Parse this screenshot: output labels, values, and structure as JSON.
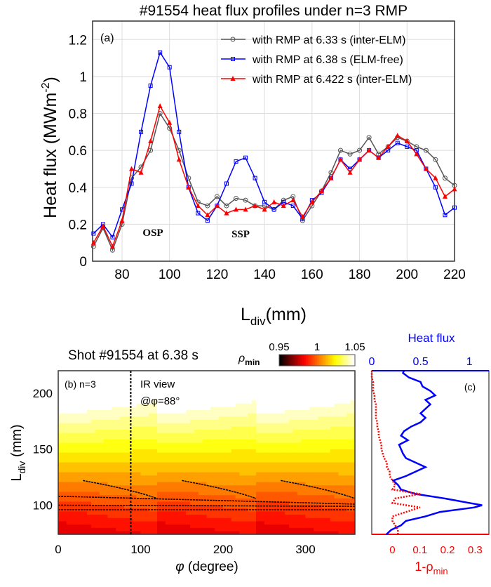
{
  "chart_data": [
    {
      "type": "line",
      "panel": "(a)",
      "title": "#91554 heat flux profiles under n=3 RMP",
      "xlabel": "L",
      "xlabel_sub": "div",
      "xlabel_unit": "(mm)",
      "ylabel": "Heat flux (MWm",
      "ylabel_sup": "-2",
      "ylabel_end": ")",
      "xlim": [
        67.6,
        220
      ],
      "ylim": [
        0,
        1.3
      ],
      "xticks": [
        80,
        100,
        120,
        140,
        160,
        180,
        200,
        220
      ],
      "yticks": [
        0,
        0.2,
        0.4,
        0.6,
        0.8,
        1,
        1.2
      ],
      "grid": true,
      "legend": "top-right",
      "annotations": [
        "OSP",
        "SSP"
      ],
      "x": [
        68,
        72,
        76,
        80,
        84,
        88,
        92,
        96,
        100,
        104,
        108,
        112,
        116,
        120,
        124,
        128,
        132,
        136,
        140,
        144,
        148,
        152,
        156,
        160,
        164,
        168,
        172,
        176,
        180,
        184,
        188,
        192,
        196,
        200,
        204,
        208,
        212,
        216,
        220
      ],
      "series": [
        {
          "name": "with RMP at 6.33 s (inter-ELM)",
          "color": "#555555",
          "marker": "circle",
          "values": [
            0.08,
            0.18,
            0.06,
            0.2,
            0.45,
            0.51,
            0.6,
            0.8,
            0.72,
            0.6,
            0.45,
            0.32,
            0.3,
            0.35,
            0.3,
            0.34,
            0.33,
            0.3,
            0.3,
            0.28,
            0.33,
            0.35,
            0.22,
            0.3,
            0.38,
            0.48,
            0.6,
            0.58,
            0.6,
            0.67,
            0.58,
            0.62,
            0.67,
            0.65,
            0.62,
            0.6,
            0.55,
            0.45,
            0.41
          ]
        },
        {
          "name": "with RMP at 6.38 s (ELM-free)",
          "color": "#0000ff",
          "marker": "square",
          "values": [
            0.15,
            0.2,
            0.13,
            0.28,
            0.42,
            0.7,
            0.95,
            1.13,
            1.05,
            0.7,
            0.4,
            0.26,
            0.22,
            0.3,
            0.42,
            0.54,
            0.56,
            0.45,
            0.32,
            0.28,
            0.32,
            0.3,
            0.23,
            0.33,
            0.37,
            0.45,
            0.55,
            0.5,
            0.55,
            0.6,
            0.56,
            0.6,
            0.64,
            0.62,
            0.6,
            0.5,
            0.4,
            0.25,
            0.29
          ]
        },
        {
          "name": "with RMP at 6.422 s (inter-ELM)",
          "color": "#ff0000",
          "marker": "triangle",
          "values": [
            0.1,
            0.19,
            0.08,
            0.22,
            0.5,
            0.48,
            0.65,
            0.84,
            0.75,
            0.55,
            0.4,
            0.3,
            0.25,
            0.3,
            0.26,
            0.28,
            0.28,
            0.3,
            0.28,
            0.32,
            0.3,
            0.33,
            0.24,
            0.32,
            0.38,
            0.45,
            0.55,
            0.48,
            0.55,
            0.6,
            0.56,
            0.62,
            0.68,
            0.65,
            0.58,
            0.5,
            0.45,
            0.35,
            0.39
          ]
        }
      ]
    },
    {
      "type": "heatmap",
      "panel": "(b) n=3",
      "title": "Shot #91554 at 6.38 s",
      "xlabel": "(degree)",
      "xlabel_symbol": "φ",
      "ylabel": "L",
      "ylabel_sub": "div",
      "ylabel_unit": "(mm)",
      "xlim": [
        0,
        360
      ],
      "ylim": [
        74,
        220
      ],
      "xticks": [
        0,
        100,
        200,
        300
      ],
      "yticks": [
        100,
        150,
        200
      ],
      "colorbar": {
        "label": "ρ",
        "label_sub": "min",
        "ticks": [
          "0.95",
          "1",
          "1.05"
        ],
        "range": [
          0.95,
          1.05
        ],
        "colormap": "hot"
      },
      "annotation": {
        "line1": "IR view",
        "line2": "@φ=88°",
        "phi": 88
      },
      "periodicity_deg": 120
    },
    {
      "type": "line",
      "panel": "(c)",
      "top_axis": {
        "label": "Heat flux",
        "ticks": [
          0,
          0.5,
          1
        ],
        "range": [
          0,
          1.2
        ],
        "color": "#0000ff"
      },
      "bottom_axis": {
        "label": "1-ρ",
        "label_sub": "min",
        "ticks": [
          0,
          0.1,
          0.2,
          0.3
        ],
        "range": [
          -0.075,
          0.35
        ],
        "color": "#ff0000"
      },
      "ylim": [
        74,
        220
      ],
      "L": [
        74,
        78,
        82,
        86,
        90,
        94,
        98,
        100,
        102,
        106,
        110,
        114,
        118,
        122,
        126,
        130,
        134,
        138,
        142,
        146,
        150,
        154,
        158,
        162,
        166,
        170,
        174,
        178,
        182,
        186,
        190,
        194,
        198,
        202,
        206,
        210,
        214,
        218,
        220
      ],
      "series": [
        {
          "name": "Heat flux",
          "color": "#0000ff",
          "values": [
            0.15,
            0.2,
            0.3,
            0.35,
            0.55,
            0.7,
            1.05,
            1.13,
            1.0,
            0.75,
            0.45,
            0.3,
            0.27,
            0.22,
            0.35,
            0.45,
            0.55,
            0.45,
            0.35,
            0.32,
            0.3,
            0.28,
            0.37,
            0.3,
            0.33,
            0.4,
            0.5,
            0.55,
            0.5,
            0.55,
            0.6,
            0.55,
            0.65,
            0.6,
            0.52,
            0.5,
            0.38,
            0.32,
            0.33
          ]
        },
        {
          "name": "1-ρmin",
          "color": "#ff0000",
          "values": [
            0.02,
            0.02,
            0.01,
            0.0,
            0.0,
            0.05,
            0.1,
            0.05,
            0.0,
            0.01,
            0.1,
            0.0,
            0.01,
            0.0,
            -0.01,
            -0.01,
            -0.02,
            -0.02,
            -0.03,
            -0.035,
            -0.04,
            -0.04,
            -0.045,
            -0.05,
            -0.05,
            -0.055,
            -0.055,
            -0.06,
            -0.06,
            -0.06,
            -0.06,
            -0.065,
            -0.065,
            -0.07,
            -0.07,
            -0.07,
            -0.075,
            -0.075,
            -0.075
          ]
        }
      ]
    }
  ]
}
